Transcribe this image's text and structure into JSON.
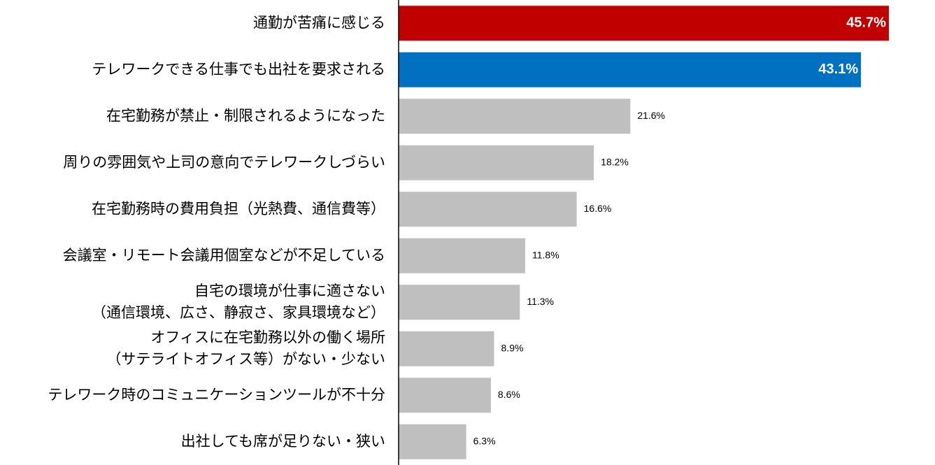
{
  "chart_data": {
    "type": "bar",
    "orientation": "horizontal",
    "title": "",
    "xlabel": "",
    "ylabel": "",
    "unit": "%",
    "grid": false,
    "legend": "none",
    "xlim": [
      0,
      46
    ],
    "categories": [
      [
        "通勤が苦痛に感じる"
      ],
      [
        "テレワークできる仕事でも出社を要求される"
      ],
      [
        "在宅勤務が禁止・制限されるようになった"
      ],
      [
        "周りの雰囲気や上司の意向でテレワークしづらい"
      ],
      [
        "在宅勤務時の費用負担（光熱費、通信費等）"
      ],
      [
        "会議室・リモート会議用個室などが不足している"
      ],
      [
        "自宅の環境が仕事に適さない",
        "（通信環境、広さ、静寂さ、家具環境など）"
      ],
      [
        "オフィスに在宅勤務以外の働く場所",
        "（サテライトオフィス等）がない・少ない"
      ],
      [
        "テレワーク時のコミュニケーションツールが不十分"
      ],
      [
        "出社しても席が足りない・狭い"
      ]
    ],
    "values": [
      45.7,
      43.1,
      21.6,
      18.2,
      16.6,
      11.8,
      11.3,
      8.9,
      8.6,
      6.3
    ],
    "value_labels": [
      "45.7%",
      "43.1%",
      "21.6%",
      "18.2%",
      "16.6%",
      "11.8%",
      "11.3%",
      "8.9%",
      "8.6%",
      "6.3%"
    ],
    "bar_colors": [
      "#C00000",
      "#0070C0",
      "#BFBFBF",
      "#BFBFBF",
      "#BFBFBF",
      "#BFBFBF",
      "#BFBFBF",
      "#BFBFBF",
      "#BFBFBF",
      "#BFBFBF"
    ],
    "highlighted_label_inside": [
      true,
      true,
      false,
      false,
      false,
      false,
      false,
      false,
      false,
      false
    ]
  }
}
